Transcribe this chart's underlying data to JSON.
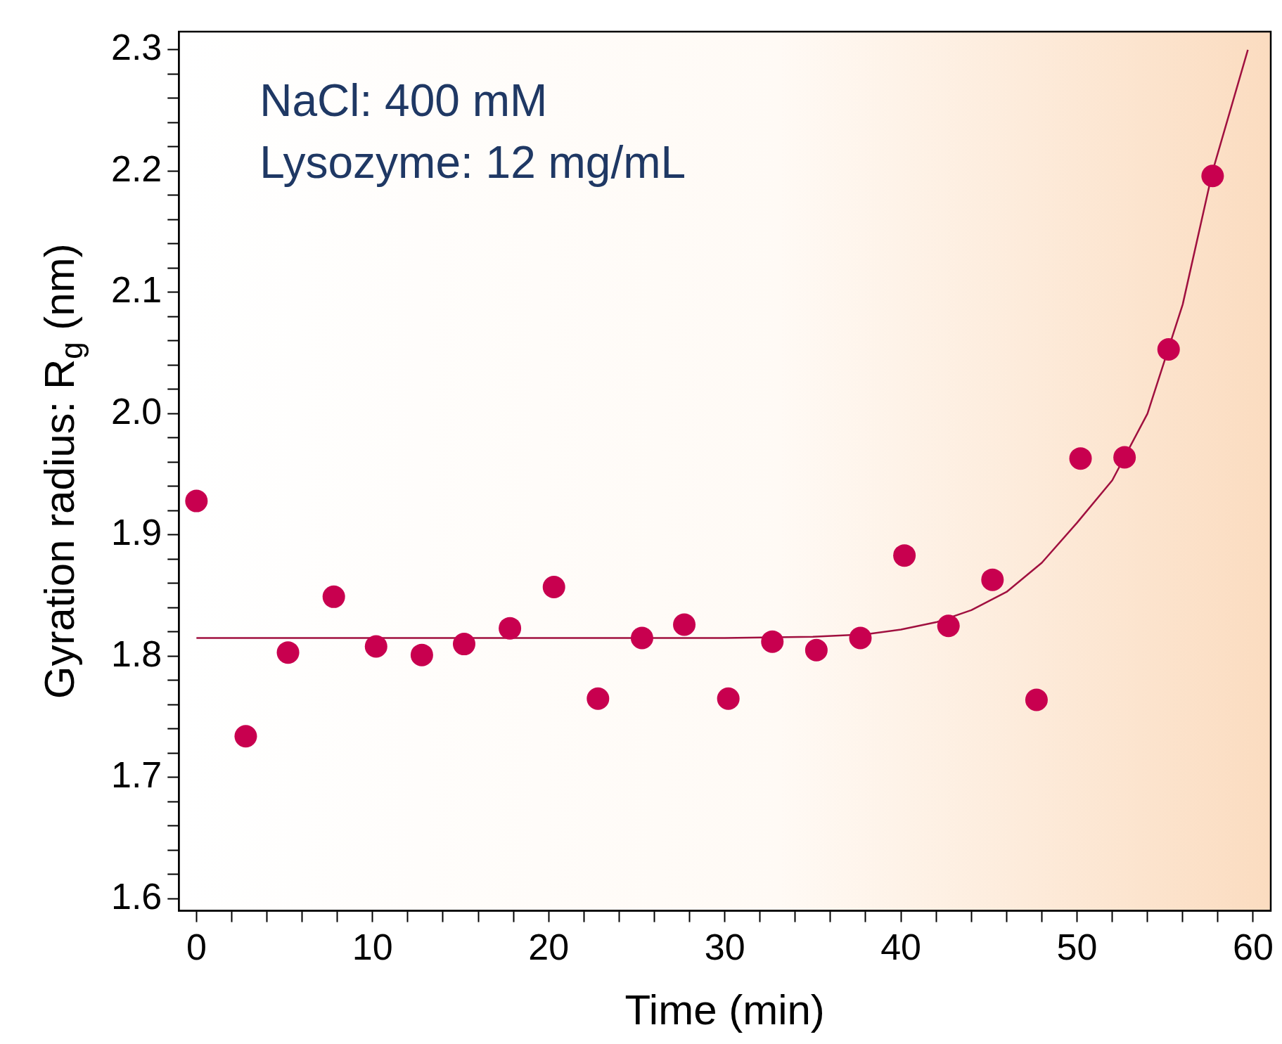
{
  "chart_data": {
    "type": "scatter",
    "xlabel": "Time (min)",
    "ylabel": "Gyration radius: R$_{g}$ (nm)",
    "annotations": [
      "NaCl: 400 mM",
      "Lysozyme: 12 mg/mL"
    ],
    "xlim": [
      -1,
      61
    ],
    "xticks": [
      0,
      {
        "value": 2,
        "label": null
      },
      {
        "value": 4,
        "label": null
      },
      {
        "value": 6,
        "label": null
      },
      {
        "value": 8,
        "label": null
      },
      10,
      {
        "value": 12,
        "label": null
      },
      {
        "value": 14,
        "label": null
      },
      {
        "value": 16,
        "label": null
      },
      {
        "value": 18,
        "label": null
      },
      20,
      {
        "value": 22,
        "label": null
      },
      {
        "value": 24,
        "label": null
      },
      {
        "value": 26,
        "label": null
      },
      {
        "value": 28,
        "label": null
      },
      30,
      {
        "value": 32,
        "label": null
      },
      {
        "value": 34,
        "label": null
      },
      {
        "value": 36,
        "label": null
      },
      {
        "value": 38,
        "label": null
      },
      40,
      {
        "value": 42,
        "label": null
      },
      {
        "value": 44,
        "label": null
      },
      {
        "value": 46,
        "label": null
      },
      {
        "value": 48,
        "label": null
      },
      50,
      {
        "value": 52,
        "label": null
      },
      {
        "value": 54,
        "label": null
      },
      {
        "value": 56,
        "label": null
      },
      {
        "value": 58,
        "label": null
      },
      60
    ],
    "ylim": [
      1.59,
      2.315
    ],
    "yticks": [
      1.6,
      {
        "value": 1.62,
        "label": null
      },
      {
        "value": 1.64,
        "label": null
      },
      {
        "value": 1.66,
        "label": null
      },
      {
        "value": 1.68,
        "label": null
      },
      1.7,
      {
        "value": 1.72,
        "label": null
      },
      {
        "value": 1.74,
        "label": null
      },
      {
        "value": 1.76,
        "label": null
      },
      {
        "value": 1.78,
        "label": null
      },
      1.8,
      {
        "value": 1.82,
        "label": null
      },
      {
        "value": 1.84,
        "label": null
      },
      {
        "value": 1.86,
        "label": null
      },
      {
        "value": 1.88,
        "label": null
      },
      1.9,
      {
        "value": 1.92,
        "label": null
      },
      {
        "value": 1.94,
        "label": null
      },
      {
        "value": 1.96,
        "label": null
      },
      {
        "value": 1.98,
        "label": null
      },
      {
        "value": 2.0,
        "label": "2.0"
      },
      {
        "value": 2.02,
        "label": null
      },
      {
        "value": 2.04,
        "label": null
      },
      {
        "value": 2.06,
        "label": null
      },
      {
        "value": 2.08,
        "label": null
      },
      2.1,
      {
        "value": 2.12,
        "label": null
      },
      {
        "value": 2.14,
        "label": null
      },
      {
        "value": 2.16,
        "label": null
      },
      {
        "value": 2.18,
        "label": null
      },
      2.2,
      {
        "value": 2.22,
        "label": null
      },
      {
        "value": 2.24,
        "label": null
      },
      {
        "value": 2.26,
        "label": null
      },
      {
        "value": 2.28,
        "label": null
      },
      2.3
    ],
    "grid": false,
    "legend": false,
    "line_style": "solid",
    "series": [
      {
        "type": "scatter",
        "marker": "circle",
        "color": "#c8004f",
        "x": [
          0,
          2.8,
          5.2,
          7.8,
          10.2,
          12.8,
          15.2,
          17.8,
          20.3,
          22.8,
          25.3,
          27.7,
          30.2,
          32.7,
          35.2,
          37.7,
          40.2,
          42.7,
          45.2,
          47.7,
          50.2,
          52.7,
          55.2,
          57.7
        ],
        "values": [
          1.928,
          1.734,
          1.803,
          1.849,
          1.808,
          1.801,
          1.81,
          1.823,
          1.857,
          1.765,
          1.815,
          1.826,
          1.765,
          1.812,
          1.805,
          1.815,
          1.883,
          1.825,
          1.863,
          1.764,
          1.963,
          1.964,
          2.053,
          2.196
        ]
      },
      {
        "type": "line",
        "marker": "none",
        "color": "#a0103f",
        "x": [
          0,
          30,
          35,
          38,
          40,
          42,
          44,
          46,
          48,
          50,
          52,
          54,
          56,
          57.7,
          59.7
        ],
        "values": [
          1.815,
          1.815,
          1.816,
          1.818,
          1.822,
          1.828,
          1.838,
          1.853,
          1.877,
          1.91,
          1.945,
          2.0,
          2.09,
          2.2,
          2.3
        ]
      }
    ]
  }
}
